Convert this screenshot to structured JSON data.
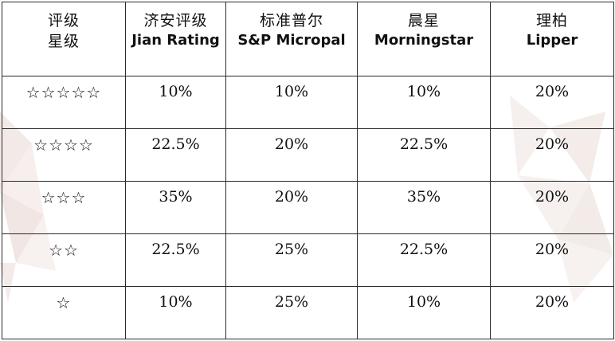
{
  "columns": [
    {
      "zh": "评级",
      "zh2": "星级",
      "en": ""
    },
    {
      "zh": "济安评级",
      "zh2": "",
      "en": "Jian Rating"
    },
    {
      "zh": "标准普尔",
      "zh2": "",
      "en": "S&P Micropal"
    },
    {
      "zh": "晨星",
      "zh2": "",
      "en": "Morningstar"
    },
    {
      "zh": "理柏",
      "zh2": "",
      "en": "Lipper"
    }
  ],
  "rows": [
    {
      "stars": "☆☆☆☆☆",
      "jian": "10%",
      "sp": "10%",
      "morningstar": "10%",
      "lipper": "20%"
    },
    {
      "stars": "☆☆☆☆",
      "jian": "22.5%",
      "sp": "20%",
      "morningstar": "22.5%",
      "lipper": "20%"
    },
    {
      "stars": "☆☆☆",
      "jian": "35%",
      "sp": "20%",
      "morningstar": "35%",
      "lipper": "20%"
    },
    {
      "stars": "☆☆",
      "jian": "22.5%",
      "sp": "25%",
      "morningstar": "22.5%",
      "lipper": "20%"
    },
    {
      "stars": "☆",
      "jian": "10%",
      "sp": "25%",
      "morningstar": "10%",
      "lipper": "20%"
    }
  ]
}
